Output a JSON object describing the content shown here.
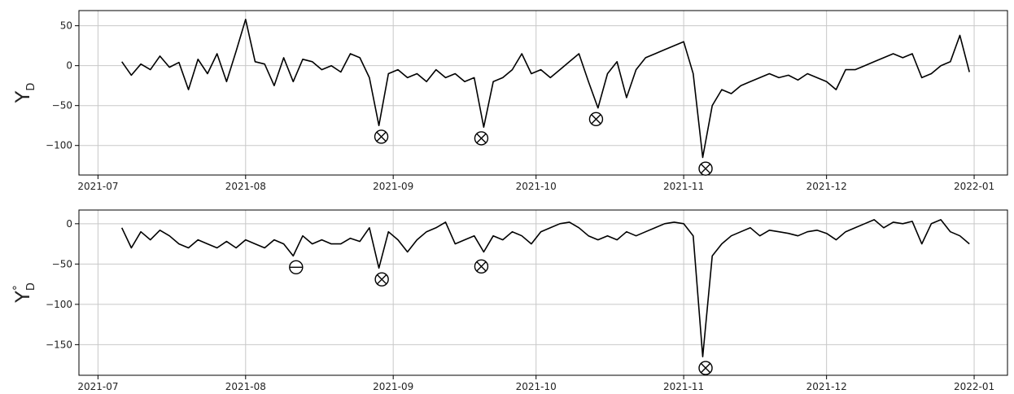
{
  "chart_data": [
    {
      "type": "line",
      "color": "#000000",
      "grid": true,
      "ylabel": {
        "main": "Y",
        "sub": "D"
      },
      "xlim": [
        178,
        373
      ],
      "ylim": [
        -137,
        69
      ],
      "xticks": [
        {
          "value": 182,
          "label": "2021-07"
        },
        {
          "value": 213,
          "label": "2021-08"
        },
        {
          "value": 244,
          "label": "2021-09"
        },
        {
          "value": 274,
          "label": "2021-10"
        },
        {
          "value": 305,
          "label": "2021-11"
        },
        {
          "value": 335,
          "label": "2021-12"
        },
        {
          "value": 366,
          "label": "2022-01"
        }
      ],
      "yticks": [
        50,
        0,
        {
          "value": -50,
          "label": "−50"
        },
        {
          "value": -100,
          "label": "−100"
        }
      ],
      "x": [
        187,
        189,
        191,
        193,
        195,
        197,
        199,
        201,
        203,
        205,
        207,
        209,
        211,
        213,
        215,
        217,
        219,
        221,
        223,
        225,
        227,
        229,
        231,
        233,
        235,
        237,
        239,
        241,
        243,
        245,
        247,
        249,
        251,
        253,
        255,
        257,
        259,
        261,
        263,
        265,
        267,
        269,
        271,
        273,
        275,
        277,
        279,
        281,
        283,
        285,
        287,
        289,
        291,
        293,
        295,
        297,
        299,
        301,
        303,
        305,
        307,
        309,
        311,
        313,
        315,
        317,
        319,
        321,
        323,
        325,
        327,
        329,
        331,
        333,
        335,
        337,
        339,
        341,
        343,
        345,
        347,
        349,
        351,
        353,
        355,
        357,
        359,
        361,
        363,
        365
      ],
      "values": [
        5,
        -12,
        2,
        -5,
        12,
        -2,
        4,
        -30,
        8,
        -10,
        15,
        -20,
        18,
        58,
        5,
        2,
        -25,
        10,
        -20,
        8,
        5,
        -5,
        0,
        -8,
        15,
        10,
        -15,
        -75,
        -10,
        -5,
        -15,
        -10,
        -20,
        -5,
        -15,
        -10,
        -20,
        -15,
        -77,
        -20,
        -15,
        -5,
        15,
        -10,
        -5,
        -15,
        -5,
        5,
        15,
        -20,
        -53,
        -10,
        5,
        -40,
        -5,
        10,
        15,
        20,
        25,
        30,
        -10,
        -115,
        -50,
        -30,
        -35,
        -25,
        -20,
        -15,
        -10,
        -15,
        -12,
        -18,
        -10,
        -15,
        -20,
        -30,
        -5,
        -5,
        0,
        5,
        10,
        15,
        10,
        15,
        -15,
        -10,
        0,
        5,
        38,
        -8
      ],
      "markers": [
        {
          "x": 241.5,
          "y": -89,
          "kind": "cross"
        },
        {
          "x": 262.5,
          "y": -91,
          "kind": "cross"
        },
        {
          "x": 286.6,
          "y": -67,
          "kind": "cross"
        },
        {
          "x": 309.6,
          "y": -129,
          "kind": "cross"
        }
      ]
    },
    {
      "type": "line",
      "color": "#000000",
      "grid": true,
      "ylabel": {
        "main": "Y",
        "sup": "°",
        "sub": "D"
      },
      "xlim": [
        178,
        373
      ],
      "ylim": [
        -188,
        17
      ],
      "xticks": [
        {
          "value": 182,
          "label": "2021-07"
        },
        {
          "value": 213,
          "label": "2021-08"
        },
        {
          "value": 244,
          "label": "2021-09"
        },
        {
          "value": 274,
          "label": "2021-10"
        },
        {
          "value": 305,
          "label": "2021-11"
        },
        {
          "value": 335,
          "label": "2021-12"
        },
        {
          "value": 366,
          "label": "2022-01"
        }
      ],
      "yticks": [
        0,
        {
          "value": -50,
          "label": "−50"
        },
        {
          "value": -100,
          "label": "−100"
        },
        {
          "value": -150,
          "label": "−150"
        }
      ],
      "x": [
        187,
        189,
        191,
        193,
        195,
        197,
        199,
        201,
        203,
        205,
        207,
        209,
        211,
        213,
        215,
        217,
        219,
        221,
        223,
        225,
        227,
        229,
        231,
        233,
        235,
        237,
        239,
        241,
        243,
        245,
        247,
        249,
        251,
        253,
        255,
        257,
        259,
        261,
        263,
        265,
        267,
        269,
        271,
        273,
        275,
        277,
        279,
        281,
        283,
        285,
        287,
        289,
        291,
        293,
        295,
        297,
        299,
        301,
        303,
        305,
        307,
        309,
        311,
        313,
        315,
        317,
        319,
        321,
        323,
        325,
        327,
        329,
        331,
        333,
        335,
        337,
        339,
        341,
        343,
        345,
        347,
        349,
        351,
        353,
        355,
        357,
        359,
        361,
        363,
        365
      ],
      "values": [
        -5,
        -30,
        -10,
        -20,
        -8,
        -15,
        -25,
        -30,
        -20,
        -25,
        -30,
        -22,
        -30,
        -20,
        -25,
        -30,
        -20,
        -25,
        -40,
        -15,
        -25,
        -20,
        -25,
        -25,
        -18,
        -22,
        -5,
        -55,
        -10,
        -20,
        -35,
        -20,
        -10,
        -5,
        2,
        -25,
        -20,
        -15,
        -35,
        -15,
        -20,
        -10,
        -15,
        -25,
        -10,
        -5,
        0,
        2,
        -5,
        -15,
        -20,
        -15,
        -20,
        -10,
        -15,
        -10,
        -5,
        0,
        2,
        0,
        -15,
        -165,
        -40,
        -25,
        -15,
        -10,
        -5,
        -15,
        -8,
        -10,
        -12,
        -15,
        -10,
        -8,
        -12,
        -20,
        -10,
        -5,
        0,
        5,
        -5,
        2,
        0,
        3,
        -25,
        0,
        5,
        -10,
        -15,
        -25
      ],
      "markers": [
        {
          "x": 223.6,
          "y": -54,
          "kind": "minus"
        },
        {
          "x": 241.6,
          "y": -69,
          "kind": "cross"
        },
        {
          "x": 262.5,
          "y": -53,
          "kind": "cross"
        },
        {
          "x": 309.6,
          "y": -179,
          "kind": "cross"
        }
      ]
    }
  ]
}
